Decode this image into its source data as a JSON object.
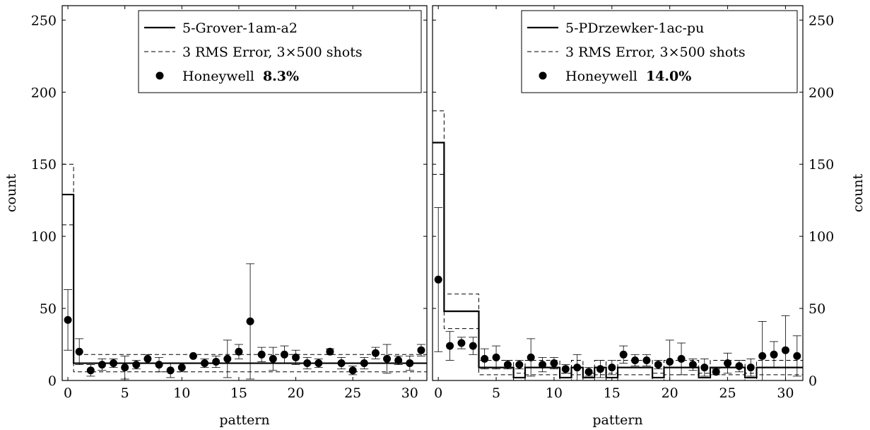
{
  "chart_data": [
    {
      "type": "step+scatter",
      "xlabel": "pattern",
      "ylabel": "count",
      "xlim": [
        -0.5,
        31.5
      ],
      "ylim": [
        0,
        260
      ],
      "xticks": [
        0,
        5,
        10,
        15,
        20,
        25,
        30
      ],
      "yticks": [
        0,
        50,
        100,
        150,
        200,
        250
      ],
      "y_axis_side": "left",
      "legend": {
        "placement": "top-right",
        "entries": [
          {
            "text": "5-Grover-1am-a2",
            "style": "solid"
          },
          {
            "text": "3 RMS Error, 3×500 shots",
            "style": "dashed"
          },
          {
            "text": "Honeywell ",
            "bold": "8.3%",
            "style": "marker"
          }
        ]
      },
      "expected": [
        129,
        12,
        12,
        12,
        12,
        12,
        12,
        12,
        12,
        12,
        12,
        12,
        12,
        12,
        12,
        12,
        12,
        12,
        12,
        12,
        12,
        12,
        12,
        12,
        12,
        12,
        12,
        12,
        12,
        12,
        12,
        12
      ],
      "upper": [
        150,
        18,
        18,
        18,
        18,
        18,
        18,
        18,
        18,
        18,
        18,
        18,
        18,
        18,
        18,
        18,
        18,
        18,
        18,
        18,
        18,
        18,
        18,
        18,
        18,
        18,
        18,
        18,
        18,
        18,
        18,
        18
      ],
      "lower": [
        108,
        6,
        6,
        6,
        6,
        6,
        6,
        6,
        6,
        6,
        6,
        6,
        6,
        6,
        6,
        6,
        6,
        6,
        6,
        6,
        6,
        6,
        6,
        6,
        6,
        6,
        6,
        6,
        6,
        6,
        6,
        6
      ],
      "measured": [
        42,
        20,
        7,
        11,
        12,
        9,
        11,
        15,
        11,
        7,
        9,
        17,
        12,
        13,
        15,
        20,
        41,
        18,
        15,
        18,
        16,
        12,
        12,
        20,
        12,
        7,
        12,
        19,
        15,
        14,
        12,
        21
      ],
      "err": [
        21,
        9,
        4,
        4,
        3,
        8,
        3,
        3,
        5,
        5,
        3,
        0,
        3,
        4,
        13,
        5,
        40,
        5,
        8,
        6,
        5,
        4,
        3,
        2,
        4,
        3,
        4,
        4,
        10,
        3,
        5,
        4
      ]
    },
    {
      "type": "step+scatter",
      "xlabel": "pattern",
      "ylabel": "count",
      "xlim": [
        -0.5,
        31.5
      ],
      "ylim": [
        0,
        260
      ],
      "xticks": [
        0,
        5,
        10,
        15,
        20,
        25,
        30
      ],
      "yticks": [
        0,
        50,
        100,
        150,
        200,
        250
      ],
      "y_axis_side": "right",
      "legend": {
        "placement": "top-right",
        "entries": [
          {
            "text": "5-PDrzewker-1ac-pu",
            "style": "solid"
          },
          {
            "text": "3 RMS Error, 3×500 shots",
            "style": "dashed"
          },
          {
            "text": "Honeywell ",
            "bold": "14.0%",
            "style": "marker"
          }
        ]
      },
      "expected": [
        165,
        48,
        48,
        48,
        9,
        9,
        9,
        2,
        9,
        9,
        9,
        2,
        9,
        2,
        9,
        2,
        9,
        9,
        9,
        2,
        9,
        9,
        9,
        2,
        9,
        9,
        9,
        2,
        9,
        9,
        9,
        9
      ],
      "upper": [
        187,
        60,
        60,
        60,
        14,
        14,
        14,
        5,
        14,
        14,
        14,
        5,
        14,
        5,
        14,
        5,
        14,
        14,
        14,
        5,
        14,
        14,
        14,
        5,
        14,
        14,
        14,
        5,
        14,
        14,
        14,
        14
      ],
      "lower": [
        143,
        36,
        36,
        36,
        4,
        4,
        4,
        0,
        4,
        4,
        4,
        0,
        4,
        0,
        4,
        0,
        4,
        4,
        4,
        0,
        4,
        4,
        4,
        0,
        4,
        4,
        4,
        0,
        4,
        4,
        4,
        4
      ],
      "measured": [
        70,
        24,
        26,
        24,
        15,
        16,
        11,
        11,
        16,
        11,
        12,
        8,
        9,
        6,
        8,
        9,
        18,
        14,
        14,
        11,
        13,
        15,
        11,
        9,
        6,
        12,
        10,
        9,
        17,
        18,
        21,
        17
      ],
      "err": [
        50,
        10,
        4,
        6,
        7,
        8,
        3,
        3,
        13,
        5,
        4,
        3,
        9,
        3,
        6,
        5,
        6,
        4,
        4,
        3,
        15,
        11,
        4,
        6,
        2,
        7,
        4,
        6,
        24,
        9,
        24,
        14
      ]
    }
  ]
}
